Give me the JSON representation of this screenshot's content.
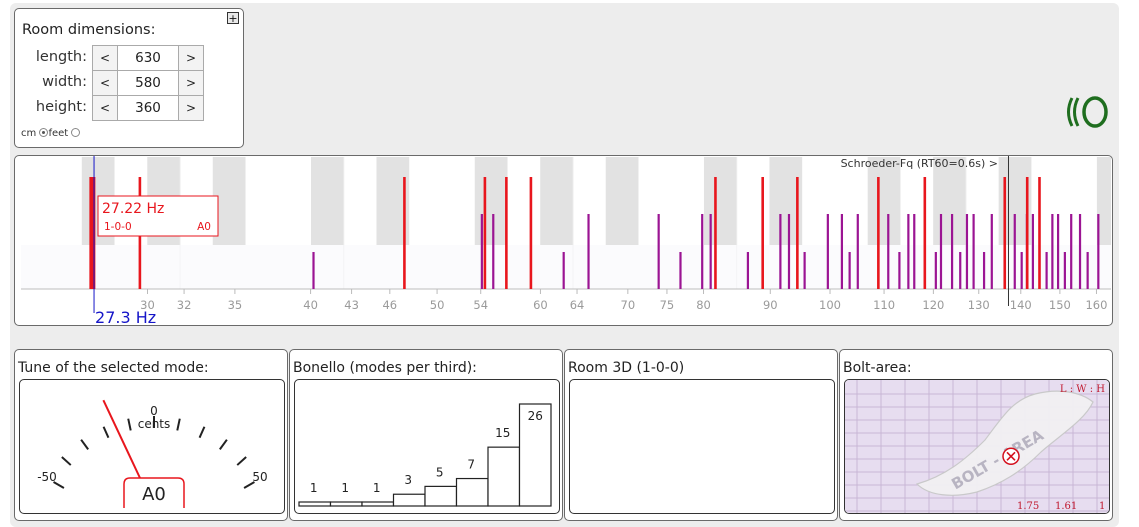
{
  "room": {
    "title": "Room dimensions:",
    "expand_label": "+",
    "length": {
      "label": "length:",
      "value": "630"
    },
    "width": {
      "label": "width:",
      "value": "580"
    },
    "height": {
      "label": "height:",
      "value": "360"
    },
    "dec_label": "<",
    "inc_label": ">",
    "units": {
      "cm_label": "cm",
      "feet_label": "feet",
      "selected": "cm"
    }
  },
  "spectrum": {
    "schroeder_label": "Schroeder-Fq (RT60=0.6s) >",
    "schroeder_hz": 137,
    "cursor_label": "27.3 Hz",
    "cursor_hz": 27.3,
    "tooltip": {
      "freq": "27.22 Hz",
      "mode": "1-0-0",
      "note": "A0"
    },
    "x_ticks": [
      30,
      32,
      35,
      40,
      43,
      46,
      50,
      54,
      60,
      64,
      70,
      75,
      80,
      90,
      100,
      110,
      120,
      130,
      140,
      150,
      160
    ],
    "axis_range_hz": [
      24,
      163
    ],
    "red_modes_hz": [
      27.22,
      29.6,
      47.2,
      54.4,
      56.5,
      59.0,
      81.7,
      88.8,
      94.4,
      108.9,
      118.2,
      136.1,
      141.6,
      144.7
    ],
    "purple_modes_hz": [
      40.2,
      54.1,
      55.2,
      62.5,
      65.3,
      73.9,
      76.8,
      79.8,
      81.0,
      86.5,
      91.6,
      93.0,
      95.6,
      99.6,
      102.1,
      103.5,
      105.0,
      110.8,
      113.0,
      114.8,
      116.0,
      120.5,
      121.6,
      124.0,
      125.8,
      127.3,
      128.8,
      131.2,
      133.0,
      138.5,
      140.2,
      141.5,
      143.0,
      146.5,
      148.0,
      149.5,
      151.3,
      153.0,
      155.4,
      157.5,
      160.5
    ],
    "colors": {
      "axial": "#e8161d",
      "other": "#9b1493",
      "cursor": "#1515c8",
      "tooltip_text": "#e8161d"
    }
  },
  "tune": {
    "title": "Tune of the selected mode:",
    "center_value": "0",
    "center_unit": "cents",
    "min_label": "-50",
    "max_label": "50",
    "cents_offset": -21,
    "note": "A0"
  },
  "bonello": {
    "title": "Bonello (modes per third):",
    "values": [
      1,
      1,
      1,
      3,
      5,
      7,
      15,
      26
    ]
  },
  "room3d": {
    "title": "Room 3D (1-0-0)"
  },
  "bolt": {
    "title": "Bolt-area:",
    "header": "L : W : H",
    "watermark": "BOLT - AREA",
    "ratio_y": 1.75,
    "ratio_x": 1.61,
    "ratio_y_label": "1.75",
    "ratio_x_label": "1.61",
    "ratio_base_label": "1"
  }
}
